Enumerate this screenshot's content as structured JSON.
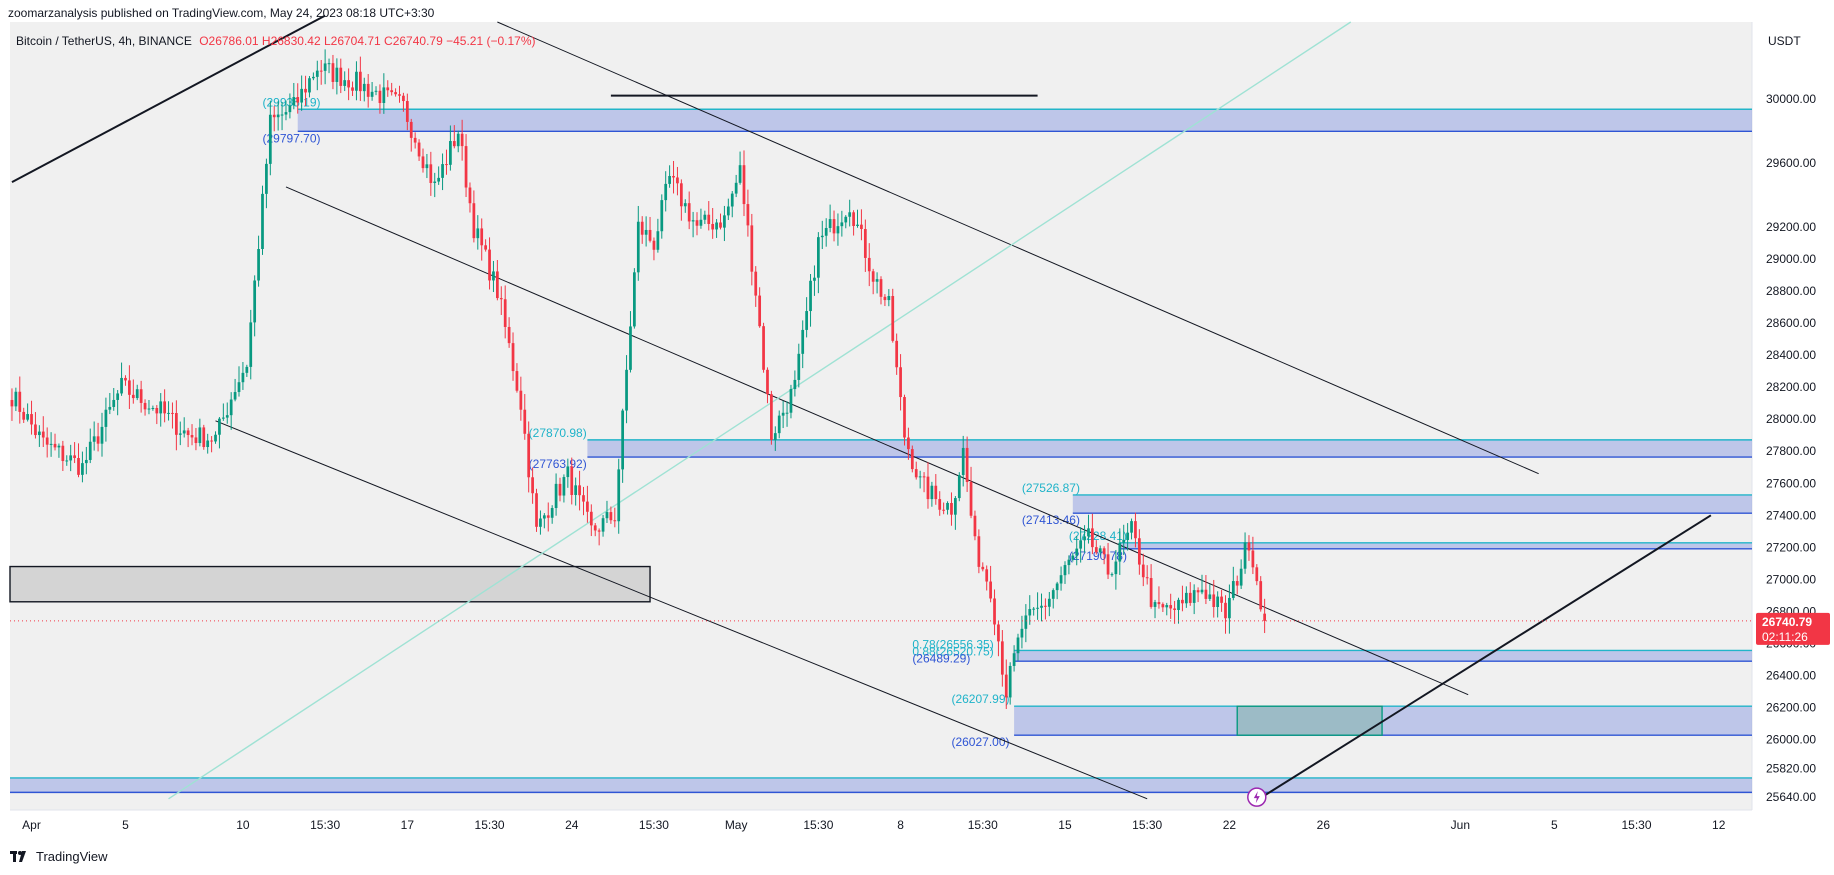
{
  "header": {
    "published": "zoomarzanalysis published on TradingView.com, May 24, 2023 08:18 UTC+3:30",
    "symbol": "Bitcoin / TetherUS, 4h, BINANCE",
    "ohlc": "O26786.01 H26830.42 L26704.71 C26740.79 −45.21 (−0.17%)"
  },
  "price_axis": {
    "unit": "USDT",
    "current_price": "26740.79",
    "countdown": "02:11:26"
  },
  "colors": {
    "up": "#089981",
    "down": "#f23645",
    "zone_fill": "#3c5bd6",
    "current_badge": "#f23645",
    "trend_teal": "#9fe2d4"
  },
  "footer": {
    "brand": "TradingView",
    "logo_icon": "tradingview-logo-icon"
  },
  "chart_data": {
    "type": "candlestick",
    "interval": "4h",
    "ylim": [
      25560,
      30480
    ],
    "yticks": [
      25640,
      25820,
      26000,
      26200,
      26400,
      26600,
      26800,
      27000,
      27200,
      27400,
      27600,
      27800,
      28000,
      28200,
      28400,
      28600,
      28800,
      29000,
      29200,
      29600,
      30000
    ],
    "xticks": [
      {
        "label": "Apr",
        "bar": 5
      },
      {
        "label": "5",
        "bar": 29
      },
      {
        "label": "10",
        "bar": 59
      },
      {
        "label": "15:30",
        "bar": 80
      },
      {
        "label": "17",
        "bar": 101
      },
      {
        "label": "15:30",
        "bar": 122
      },
      {
        "label": "24",
        "bar": 143
      },
      {
        "label": "15:30",
        "bar": 164
      },
      {
        "label": "May",
        "bar": 185
      },
      {
        "label": "15:30",
        "bar": 206
      },
      {
        "label": "8",
        "bar": 227
      },
      {
        "label": "15:30",
        "bar": 248
      },
      {
        "label": "15",
        "bar": 269
      },
      {
        "label": "15:30",
        "bar": 290
      },
      {
        "label": "22",
        "bar": 311
      },
      {
        "label": "26",
        "bar": 335
      },
      {
        "label": "Jun",
        "bar": 370
      },
      {
        "label": "5",
        "bar": 394
      },
      {
        "label": "15:30",
        "bar": 415
      },
      {
        "label": "12",
        "bar": 436
      }
    ],
    "bars_total": 445,
    "anchors": [
      {
        "bar": 0,
        "price": 28150
      },
      {
        "bar": 8,
        "price": 27850
      },
      {
        "bar": 18,
        "price": 27700
      },
      {
        "bar": 28,
        "price": 28200
      },
      {
        "bar": 38,
        "price": 28050
      },
      {
        "bar": 45,
        "price": 27900
      },
      {
        "bar": 52,
        "price": 27880
      },
      {
        "bar": 57,
        "price": 28200
      },
      {
        "bar": 60,
        "price": 28350
      },
      {
        "bar": 63,
        "price": 29100
      },
      {
        "bar": 66,
        "price": 29850
      },
      {
        "bar": 72,
        "price": 29950
      },
      {
        "bar": 78,
        "price": 30200
      },
      {
        "bar": 88,
        "price": 30100
      },
      {
        "bar": 100,
        "price": 29950
      },
      {
        "bar": 108,
        "price": 29450
      },
      {
        "bar": 114,
        "price": 29800
      },
      {
        "bar": 118,
        "price": 29200
      },
      {
        "bar": 124,
        "price": 28800
      },
      {
        "bar": 130,
        "price": 28100
      },
      {
        "bar": 134,
        "price": 27300
      },
      {
        "bar": 138,
        "price": 27500
      },
      {
        "bar": 142,
        "price": 27650
      },
      {
        "bar": 148,
        "price": 27300
      },
      {
        "bar": 154,
        "price": 27400
      },
      {
        "bar": 157,
        "price": 28300
      },
      {
        "bar": 160,
        "price": 29200
      },
      {
        "bar": 164,
        "price": 29100
      },
      {
        "bar": 168,
        "price": 29500
      },
      {
        "bar": 175,
        "price": 29200
      },
      {
        "bar": 182,
        "price": 29250
      },
      {
        "bar": 186,
        "price": 29550
      },
      {
        "bar": 190,
        "price": 28800
      },
      {
        "bar": 194,
        "price": 27900
      },
      {
        "bar": 200,
        "price": 28200
      },
      {
        "bar": 206,
        "price": 29100
      },
      {
        "bar": 214,
        "price": 29350
      },
      {
        "bar": 220,
        "price": 28900
      },
      {
        "bar": 224,
        "price": 28700
      },
      {
        "bar": 228,
        "price": 27900
      },
      {
        "bar": 232,
        "price": 27600
      },
      {
        "bar": 236,
        "price": 27500
      },
      {
        "bar": 240,
        "price": 27450
      },
      {
        "bar": 243,
        "price": 27800
      },
      {
        "bar": 246,
        "price": 27200
      },
      {
        "bar": 250,
        "price": 26950
      },
      {
        "bar": 254,
        "price": 26300
      },
      {
        "bar": 258,
        "price": 26700
      },
      {
        "bar": 264,
        "price": 26850
      },
      {
        "bar": 270,
        "price": 27100
      },
      {
        "bar": 275,
        "price": 27250
      },
      {
        "bar": 280,
        "price": 27050
      },
      {
        "bar": 286,
        "price": 27300
      },
      {
        "bar": 292,
        "price": 26800
      },
      {
        "bar": 298,
        "price": 26820
      },
      {
        "bar": 304,
        "price": 26950
      },
      {
        "bar": 310,
        "price": 26780
      },
      {
        "bar": 316,
        "price": 27250
      },
      {
        "bar": 319,
        "price": 26880
      },
      {
        "bar": 320,
        "price": 26740.79
      }
    ],
    "zones": [
      {
        "top": 29935.19,
        "bottom": 29797.7,
        "x_from_bar": 73,
        "labels": [
          "(29935.19)",
          "(29797.70)"
        ],
        "label_bar": 64
      },
      {
        "top": 27870.98,
        "bottom": 27763.92,
        "x_from_bar": 147,
        "labels": [
          "(27870.98)",
          "(27763.92)"
        ],
        "label_bar": 132
      },
      {
        "top": 27526.87,
        "bottom": 27413.46,
        "x_from_bar": 271,
        "labels": [
          "(27526.87)",
          "(27413.46)"
        ],
        "label_bar": 258
      },
      {
        "top": 27228.41,
        "bottom": 27190.78,
        "x_from_bar": 283,
        "labels": [
          "(27228.41)",
          "(27190.78)"
        ],
        "label_bar": 270
      },
      {
        "top": 26556.35,
        "bottom": 26489.29,
        "x_from_bar": 256,
        "labels": [
          "0.78(26556.35)",
          "0.88(26520.75)",
          "(26489.29)"
        ],
        "label_bar": 230
      },
      {
        "top": 26207.99,
        "bottom": 26027.0,
        "x_from_bar": 256,
        "labels": [
          "(26207.99)",
          "(26027.00)"
        ],
        "label_bar": 240
      }
    ],
    "demand_box": {
      "top": 26207.99,
      "bottom": 26027.0,
      "from_bar": 313,
      "to_bar": 350
    },
    "bottom_zone": {
      "top": 25760,
      "bottom": 25670
    },
    "gray_box": {
      "top": 27080,
      "bottom": 26860,
      "to_bar": 163
    },
    "resistance_line": {
      "price": 30020,
      "from_bar": 153,
      "to_bar": 262
    },
    "trendlines": [
      {
        "from": {
          "bar": 0,
          "price": 29480
        },
        "to": {
          "bar": 80,
          "price": 30520
        },
        "style": "thick"
      },
      {
        "from": {
          "bar": 124,
          "price": 30480
        },
        "to": {
          "bar": 390,
          "price": 27660
        },
        "style": "thin"
      },
      {
        "from": {
          "bar": 70,
          "price": 29450
        },
        "to": {
          "bar": 372,
          "price": 26280
        },
        "style": "thin"
      },
      {
        "from": {
          "bar": 52,
          "price": 27990
        },
        "to": {
          "bar": 290,
          "price": 25630
        },
        "style": "thin"
      },
      {
        "from": {
          "bar": 318,
          "price": 25620
        },
        "to": {
          "bar": 434,
          "price": 27400
        },
        "style": "thick"
      },
      {
        "from": {
          "bar": 40,
          "price": 25630
        },
        "to": {
          "bar": 342,
          "price": 30480
        },
        "style": "teal"
      }
    ],
    "current_price_line": 26740.79
  }
}
